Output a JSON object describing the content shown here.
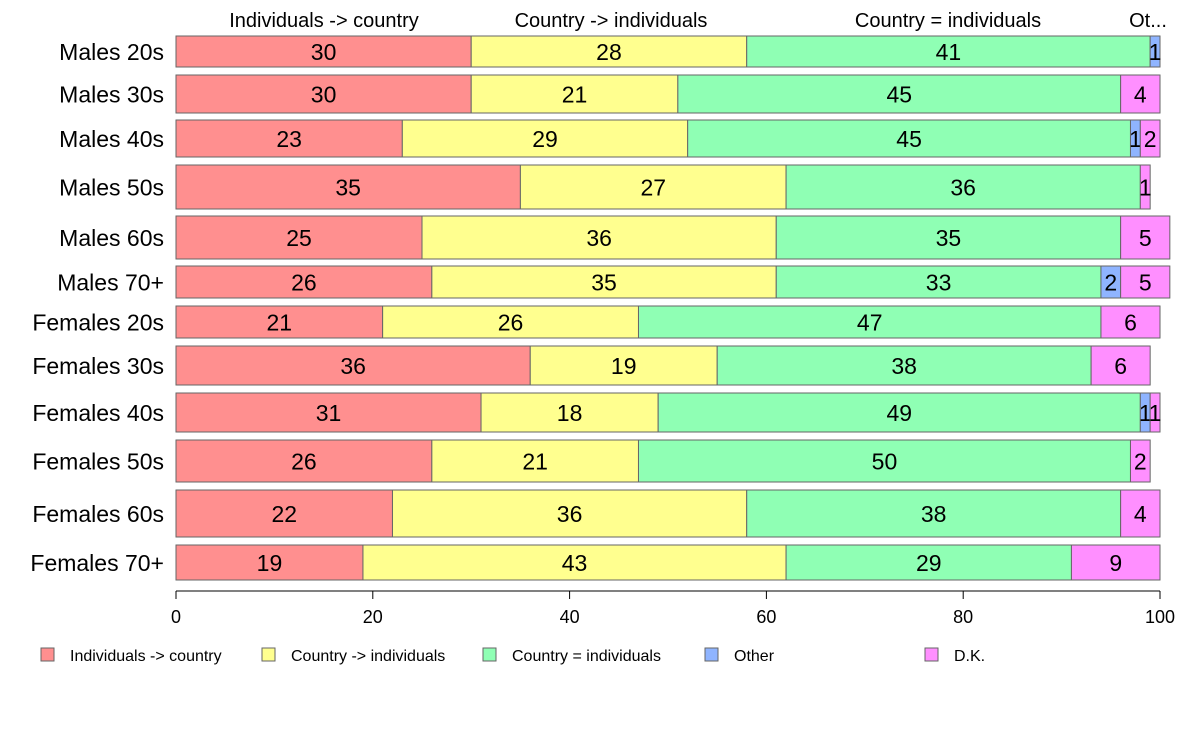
{
  "chart_data": {
    "type": "bar",
    "orientation": "horizontal",
    "stacked": true,
    "categories": [
      "Males 20s",
      "Males 30s",
      "Males 40s",
      "Males 50s",
      "Males 60s",
      "Males 70+",
      "Females 20s",
      "Females 30s",
      "Females 40s",
      "Females 50s",
      "Females 60s",
      "Females 70+"
    ],
    "series": [
      {
        "name": "Individuals -> country",
        "color": "#ff8f8f",
        "values": [
          30,
          30,
          23,
          35,
          25,
          26,
          21,
          36,
          31,
          26,
          22,
          19
        ]
      },
      {
        "name": "Country -> individuals",
        "color": "#ffff8f",
        "values": [
          28,
          21,
          29,
          27,
          36,
          35,
          26,
          19,
          18,
          21,
          36,
          43
        ]
      },
      {
        "name": "Country = individuals",
        "color": "#8fffb4",
        "values": [
          41,
          45,
          45,
          36,
          35,
          33,
          47,
          38,
          49,
          50,
          38,
          29
        ]
      },
      {
        "name": "Other",
        "color": "#8fb4ff",
        "values": [
          1,
          0,
          1,
          0,
          0,
          2,
          0,
          0,
          1,
          0,
          0,
          0
        ]
      },
      {
        "name": "D.K.",
        "color": "#ff8fff",
        "values": [
          0,
          4,
          2,
          1,
          5,
          5,
          6,
          6,
          1,
          2,
          4,
          9
        ]
      }
    ],
    "top_labels": [
      "Individuals -> country",
      "Country -> individuals",
      "Country = individuals",
      "Ot..."
    ],
    "xlim": [
      0,
      100
    ],
    "xticks": [
      0,
      20,
      40,
      60,
      80,
      100
    ],
    "grid": false,
    "legend_position": "bottom"
  }
}
